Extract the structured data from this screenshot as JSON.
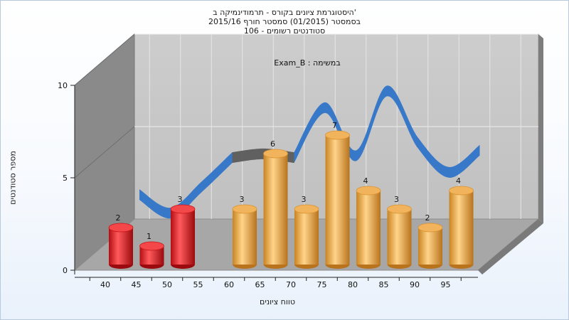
{
  "chart_data": {
    "type": "bar",
    "title_lines": [
      "היסטוגרמת ציונים בקורס - תרמודינמיקה ב'",
      "בסמסטר  (01/2015)  סמסטר חורף 2015/16",
      "סטודנטים רשומים - 106"
    ],
    "annotation": "Exam_B : במשימה",
    "xlabel": "טווח ציונים",
    "ylabel": "מספר סטודנטים",
    "categories": [
      "40",
      "45",
      "50",
      "55",
      "60",
      "65",
      "70",
      "75",
      "80",
      "85",
      "90",
      "95"
    ],
    "series": [
      {
        "values": [
          2,
          1,
          3,
          null,
          3,
          6,
          3,
          7,
          4,
          3,
          2,
          4
        ],
        "colors": [
          "red",
          "red",
          "red",
          "none",
          "orange",
          "orange",
          "orange",
          "orange",
          "orange",
          "orange",
          "orange",
          "orange"
        ]
      }
    ],
    "curve": [
      2.4,
      1.4,
      2.8,
      4.4,
      4.6,
      4.4,
      7.1,
      4.5,
      8.0,
      5.2,
      3.6,
      4.8
    ],
    "curve_gray_segment": [
      3,
      5
    ],
    "ylim": [
      0,
      10
    ],
    "yticks": [
      0,
      5,
      10
    ],
    "grid": true,
    "colors": {
      "red": "#e8262a",
      "orange": "#eaa44a",
      "blue": "#2f74c8",
      "gray": "#5b5b5b",
      "back_wall": "#c8c8c8",
      "side_wall": "#8a8a8a",
      "floor": "#a7a7a7"
    }
  }
}
